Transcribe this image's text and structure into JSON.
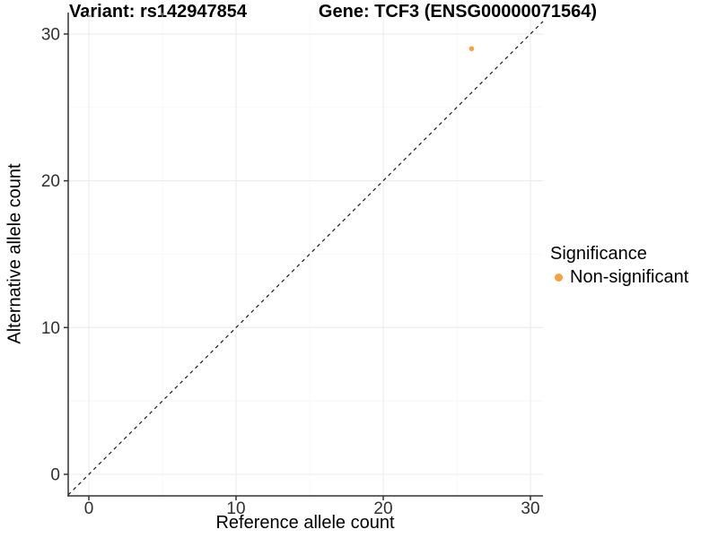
{
  "header": {
    "variant_title": "Variant: rs142947854",
    "gene_title": "Gene: TCF3 (ENSG00000071564)"
  },
  "axes": {
    "x": {
      "label": "Reference allele count",
      "ticks": [
        0,
        10,
        20,
        30
      ],
      "minor_ticks": [
        5,
        15,
        25
      ]
    },
    "y": {
      "label": "Alternative allele count",
      "ticks": [
        0,
        10,
        20,
        30
      ],
      "minor_ticks": [
        5,
        15,
        25
      ]
    }
  },
  "legend": {
    "title": "Significance",
    "items": [
      {
        "label": "Non-significant",
        "color": "#F9A03F"
      }
    ]
  },
  "chart_data": {
    "type": "scatter",
    "title": "Variant: rs142947854 | Gene: TCF3 (ENSG00000071564)",
    "xlabel": "Reference allele count",
    "ylabel": "Alternative allele count",
    "xlim": [
      -1.5,
      31.5
    ],
    "ylim": [
      -1.5,
      31.5
    ],
    "x_ticks": [
      0,
      10,
      20,
      30
    ],
    "y_ticks": [
      0,
      10,
      20,
      30
    ],
    "x_minor_ticks": [
      5,
      15,
      25
    ],
    "y_minor_ticks": [
      5,
      15,
      25
    ],
    "grid": true,
    "legend_position": "right",
    "series": [
      {
        "name": "Non-significant",
        "color": "#F9A03F",
        "points": [
          {
            "x": 26,
            "y": 29
          }
        ],
        "point_radius": 2.8
      }
    ],
    "reference_line": {
      "type": "identity",
      "slope": 1,
      "intercept": 0,
      "style": "dashed",
      "color": "#1a1a1a"
    }
  },
  "colors": {
    "point": "#F9A03F",
    "axis_line": "#333333",
    "tick_text": "#303030",
    "grid_major": "#ebebeb",
    "grid_minor": "#f6f6f6",
    "background": "#ffffff"
  }
}
